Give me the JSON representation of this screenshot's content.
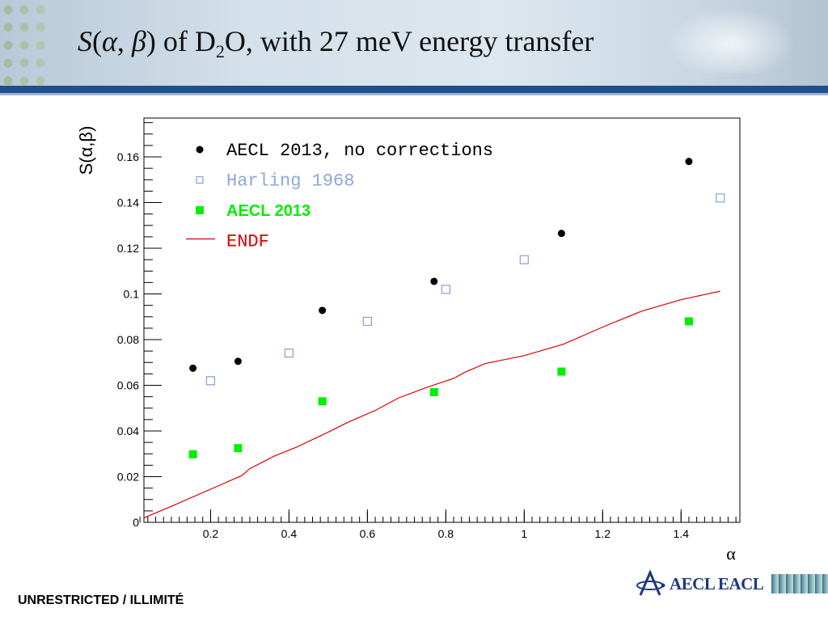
{
  "slide": {
    "title_S": "S",
    "title_open": "(",
    "title_alpha": "α",
    "title_comma": ", ",
    "title_beta": "β",
    "title_close": ")",
    "title_rest1": " of D",
    "title_sub": "2",
    "title_rest2": "O, with 27 meV energy transfer",
    "footer_left": "UNRESTRICTED / ILLIMITÉ",
    "logo_text": "AECL EACL",
    "colors": {
      "banner_line": "#1f4f8f"
    }
  },
  "chart_data": {
    "type": "scatter",
    "title": "S(α,β) of D2O, with 27 meV energy transfer",
    "xlabel": "α",
    "ylabel": "S(α,β)",
    "xlim": [
      0.03,
      1.55
    ],
    "ylim": [
      0,
      0.177
    ],
    "grid": false,
    "legend_position": "top-left",
    "x_ticks": [
      {
        "value": 0.2,
        "label": "0.2"
      },
      {
        "value": 0.4,
        "label": "0.4"
      },
      {
        "value": 0.6,
        "label": "0.6"
      },
      {
        "value": 0.8,
        "label": "0.8"
      },
      {
        "value": 1.0,
        "label": "1"
      },
      {
        "value": 1.2,
        "label": "1.2"
      },
      {
        "value": 1.4,
        "label": "1.4"
      }
    ],
    "y_ticks": [
      {
        "value": 0,
        "label": "0"
      },
      {
        "value": 0.02,
        "label": "0.02"
      },
      {
        "value": 0.04,
        "label": "0.04"
      },
      {
        "value": 0.06,
        "label": "0.06"
      },
      {
        "value": 0.08,
        "label": "0.08"
      },
      {
        "value": 0.1,
        "label": "0.1"
      },
      {
        "value": 0.12,
        "label": "0.12"
      },
      {
        "value": 0.14,
        "label": "0.14"
      },
      {
        "value": 0.16,
        "label": "0.16"
      }
    ],
    "series": [
      {
        "name": "AECL 2013, no corrections",
        "marker": "filled-circle",
        "color": "#000000",
        "legend_font": "mono",
        "points": [
          [
            0.155,
            0.0675
          ],
          [
            0.27,
            0.0705
          ],
          [
            0.485,
            0.0928
          ],
          [
            0.77,
            0.1055
          ],
          [
            1.095,
            0.1265
          ],
          [
            1.42,
            0.158
          ]
        ]
      },
      {
        "name": "Harling 1968",
        "marker": "open-square",
        "color": "#8ea6d8",
        "legend_font": "mono",
        "points": [
          [
            0.2,
            0.062
          ],
          [
            0.4,
            0.0741
          ],
          [
            0.6,
            0.088
          ],
          [
            0.8,
            0.102
          ],
          [
            1.0,
            0.115
          ],
          [
            1.5,
            0.142
          ]
        ]
      },
      {
        "name": "AECL 2013",
        "marker": "filled-square",
        "color": "#00ee00",
        "legend_font": "sans-bold",
        "points": [
          [
            0.155,
            0.0298
          ],
          [
            0.27,
            0.0325
          ],
          [
            0.485,
            0.053
          ],
          [
            0.77,
            0.057
          ],
          [
            1.095,
            0.066
          ],
          [
            1.42,
            0.088
          ]
        ]
      },
      {
        "name": "ENDF",
        "marker": "line",
        "color": "#dd0000",
        "legend_font": "mono",
        "points": [
          [
            0.03,
            0.002
          ],
          [
            0.1,
            0.007
          ],
          [
            0.2,
            0.0145
          ],
          [
            0.28,
            0.0205
          ],
          [
            0.3,
            0.0235
          ],
          [
            0.34,
            0.027
          ],
          [
            0.36,
            0.0288
          ],
          [
            0.42,
            0.033
          ],
          [
            0.5,
            0.0395
          ],
          [
            0.55,
            0.0438
          ],
          [
            0.62,
            0.049
          ],
          [
            0.68,
            0.0545
          ],
          [
            0.75,
            0.059
          ],
          [
            0.82,
            0.063
          ],
          [
            0.85,
            0.0658
          ],
          [
            0.9,
            0.0695
          ],
          [
            1.0,
            0.073
          ],
          [
            1.1,
            0.078
          ],
          [
            1.2,
            0.0855
          ],
          [
            1.3,
            0.0925
          ],
          [
            1.4,
            0.0975
          ],
          [
            1.5,
            0.1012
          ]
        ]
      }
    ]
  }
}
